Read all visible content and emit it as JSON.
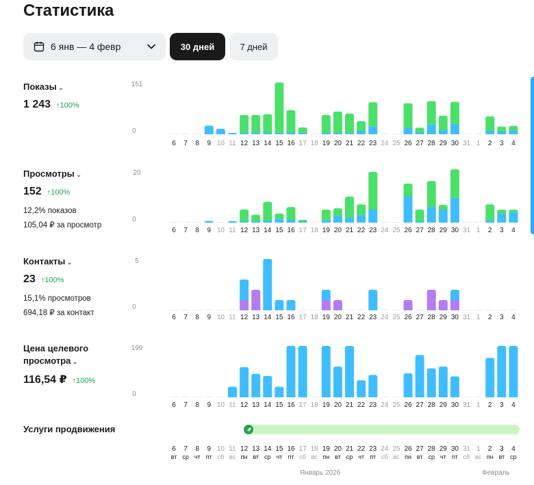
{
  "page_title": "Статистика",
  "date_range": "6 янв — 4 февр",
  "period_buttons": {
    "active": "30 дней",
    "inactive": "7 дней"
  },
  "colors": {
    "green": "#4be069",
    "blue": "#40bdff",
    "purple": "#b47cf2",
    "axis_label": "#8a8f94",
    "day_normal": "#1a1a1a",
    "day_weekend": "#9aa0a6",
    "delta": "#1ea44f"
  },
  "days": [
    "6",
    "7",
    "8",
    "9",
    "10",
    "11",
    "12",
    "13",
    "14",
    "15",
    "16",
    "17",
    "18",
    "19",
    "20",
    "21",
    "22",
    "23",
    "24",
    "25",
    "26",
    "27",
    "28",
    "29",
    "30",
    "31",
    "1",
    "2",
    "3",
    "4"
  ],
  "weekdays": [
    "вт",
    "ср",
    "чт",
    "пт",
    "сб",
    "вс",
    "пн",
    "вт",
    "ср",
    "чт",
    "пт",
    "сб",
    "вс",
    "пн",
    "вт",
    "ср",
    "чт",
    "пт",
    "сб",
    "вс",
    "пн",
    "вт",
    "ср",
    "чт",
    "пт",
    "сб",
    "вс",
    "пн",
    "вт",
    "ср"
  ],
  "weekend_days": [
    "10",
    "11",
    "17",
    "18",
    "24",
    "25",
    "31",
    "1"
  ],
  "months": {
    "jan": "Январь 2026",
    "feb": "Февраль"
  },
  "metrics": {
    "impressions": {
      "title": "Показы",
      "value": "1 243",
      "delta": "↑100%"
    },
    "views": {
      "title": "Просмотры",
      "value": "152",
      "delta": "↑100%",
      "sub1": "12,2% показов",
      "sub2": "105,04 ₽ за просмотр"
    },
    "contacts": {
      "title": "Контакты",
      "value": "23",
      "delta": "↑100%",
      "sub1": "15,1% просмотров",
      "sub2": "694,18 ₽ за контакт"
    },
    "cost": {
      "title_line1": "Цена целевого",
      "title_line2": "просмотра",
      "value": "116,54 ₽",
      "delta": "↑100%"
    }
  },
  "promo": {
    "label": "Услуги продвижения",
    "icon": "rocket-icon"
  },
  "chart_data": [
    {
      "type": "bar",
      "title": "Показы",
      "ymax_label": "151",
      "ymin_label": "0",
      "ylim": [
        0,
        151
      ],
      "categories": [
        "6",
        "7",
        "8",
        "9",
        "10",
        "11",
        "12",
        "13",
        "14",
        "15",
        "16",
        "17",
        "18",
        "19",
        "20",
        "21",
        "22",
        "23",
        "24",
        "25",
        "26",
        "27",
        "28",
        "29",
        "30",
        "31",
        "1",
        "2",
        "3",
        "4"
      ],
      "series": [
        {
          "name": "blue",
          "values": [
            0,
            0,
            0,
            25,
            16,
            2,
            4,
            4,
            4,
            4,
            6,
            2,
            0,
            4,
            4,
            4,
            10,
            23,
            0,
            0,
            18,
            6,
            28,
            12,
            30,
            0,
            0,
            10,
            8,
            10
          ]
        },
        {
          "name": "green",
          "values": [
            0,
            0,
            0,
            0,
            0,
            0,
            52,
            52,
            54,
            146,
            64,
            16,
            0,
            52,
            62,
            56,
            28,
            70,
            0,
            0,
            72,
            13,
            68,
            42,
            64,
            0,
            0,
            42,
            14,
            14
          ]
        }
      ]
    },
    {
      "type": "bar",
      "title": "Просмотры",
      "ymax_label": "20",
      "ymin_label": "0",
      "ylim": [
        0,
        20
      ],
      "categories": [
        "6",
        "7",
        "8",
        "9",
        "10",
        "11",
        "12",
        "13",
        "14",
        "15",
        "16",
        "17",
        "18",
        "19",
        "20",
        "21",
        "22",
        "23",
        "24",
        "25",
        "26",
        "27",
        "28",
        "29",
        "30",
        "31",
        "1",
        "2",
        "3",
        "4"
      ],
      "series": [
        {
          "name": "blue",
          "values": [
            0,
            0,
            0,
            0.7,
            0,
            0.6,
            0.5,
            0.3,
            0.8,
            1.5,
            1.2,
            0.3,
            0,
            1,
            2.5,
            2,
            3,
            5,
            0,
            0,
            10,
            0.5,
            6,
            5,
            9.5,
            0,
            0,
            1,
            3.5,
            4
          ]
        },
        {
          "name": "green",
          "values": [
            0,
            0,
            0,
            0,
            0,
            0,
            4.5,
            2.5,
            7.2,
            2,
            4.8,
            0.5,
            0,
            4,
            3,
            8,
            4,
            14.5,
            0,
            0,
            5,
            4.5,
            10,
            1.8,
            11,
            0,
            0,
            6,
            1.5,
            1
          ]
        }
      ]
    },
    {
      "type": "bar",
      "title": "Контакты",
      "ymax_label": "5",
      "ymin_label": "0",
      "ylim": [
        0,
        5
      ],
      "categories": [
        "6",
        "7",
        "8",
        "9",
        "10",
        "11",
        "12",
        "13",
        "14",
        "15",
        "16",
        "17",
        "18",
        "19",
        "20",
        "21",
        "22",
        "23",
        "24",
        "25",
        "26",
        "27",
        "28",
        "29",
        "30",
        "31",
        "1",
        "2",
        "3",
        "4"
      ],
      "series": [
        {
          "name": "purple",
          "values": [
            0,
            0,
            0,
            0,
            0,
            0,
            1,
            2,
            0,
            0,
            0,
            0,
            0,
            1,
            1,
            0,
            0,
            0,
            0,
            0,
            1,
            0,
            2,
            1,
            1,
            0,
            0,
            0,
            0,
            0
          ]
        },
        {
          "name": "blue",
          "values": [
            0,
            0,
            0,
            0,
            0,
            0,
            2,
            0,
            5,
            1,
            1,
            0,
            0,
            1,
            0,
            0,
            0,
            2,
            0,
            0,
            0,
            0,
            0,
            0,
            1,
            0,
            0,
            0,
            0,
            0
          ]
        }
      ]
    },
    {
      "type": "bar",
      "title": "Цена целевого просмотра",
      "ymax_label": "199",
      "ymin_label": "0",
      "ylim": [
        0,
        199
      ],
      "categories": [
        "6",
        "7",
        "8",
        "9",
        "10",
        "11",
        "12",
        "13",
        "14",
        "15",
        "16",
        "17",
        "18",
        "19",
        "20",
        "21",
        "22",
        "23",
        "24",
        "25",
        "26",
        "27",
        "28",
        "29",
        "30",
        "31",
        "1",
        "2",
        "3",
        "4"
      ],
      "series": [
        {
          "name": "blue",
          "values": [
            0,
            0,
            0,
            0,
            0,
            41,
            117,
            91,
            83,
            41,
            199,
            199,
            0,
            199,
            119,
            199,
            66,
            87,
            0,
            0,
            93,
            164,
            112,
            119,
            81,
            0,
            0,
            153,
            199,
            199
          ]
        }
      ]
    }
  ]
}
